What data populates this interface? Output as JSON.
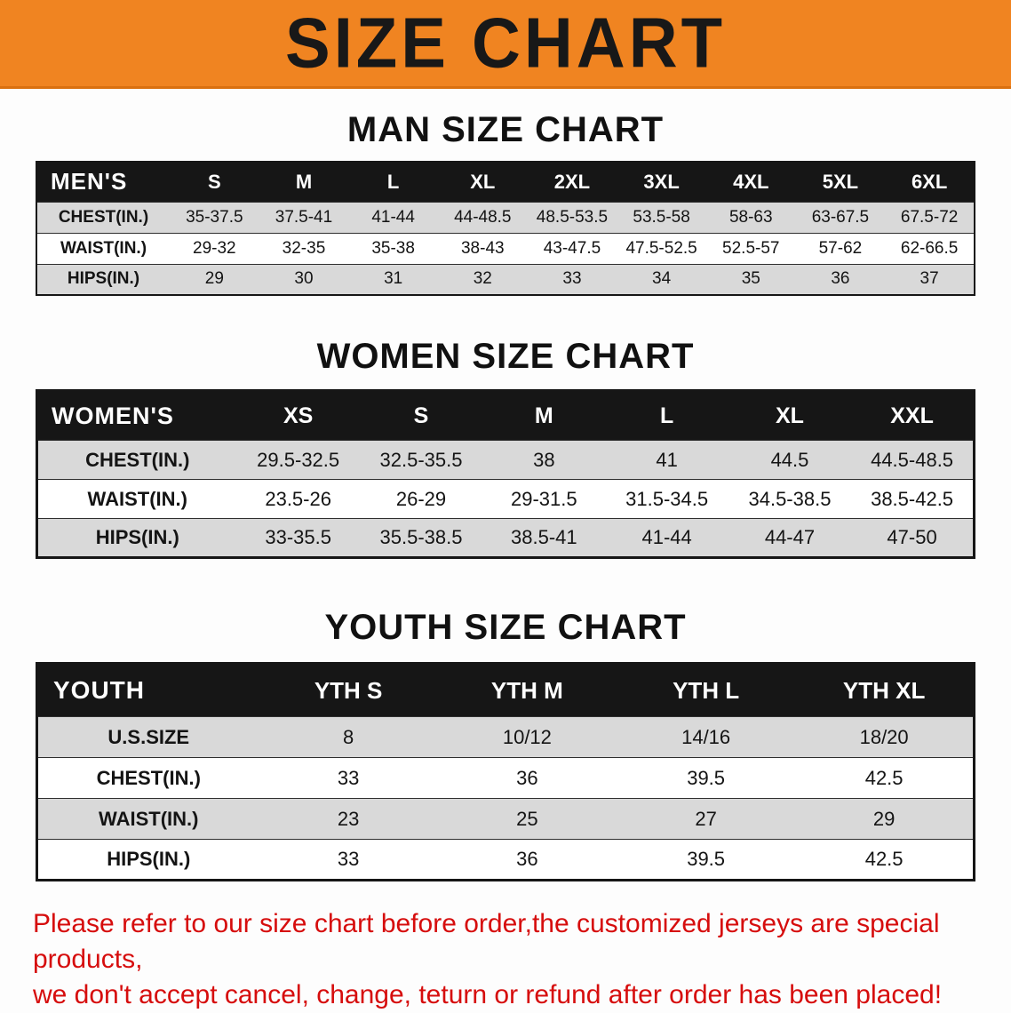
{
  "banner": {
    "title": "SIZE CHART",
    "background_color": "#f08421",
    "text_color": "#181818"
  },
  "men": {
    "heading": "MAN SIZE CHART",
    "header": [
      "MEN'S",
      "S",
      "M",
      "L",
      "XL",
      "2XL",
      "3XL",
      "4XL",
      "5XL",
      "6XL"
    ],
    "rows": [
      {
        "label": "CHEST(IN.)",
        "values": [
          "35-37.5",
          "37.5-41",
          "41-44",
          "44-48.5",
          "48.5-53.5",
          "53.5-58",
          "58-63",
          "63-67.5",
          "67.5-72"
        ]
      },
      {
        "label": "WAIST(IN.)",
        "values": [
          "29-32",
          "32-35",
          "35-38",
          "38-43",
          "43-47.5",
          "47.5-52.5",
          "52.5-57",
          "57-62",
          "62-66.5"
        ]
      },
      {
        "label": "HIPS(IN.)",
        "values": [
          "29",
          "30",
          "31",
          "32",
          "33",
          "34",
          "35",
          "36",
          "37"
        ]
      }
    ]
  },
  "women": {
    "heading": "WOMEN SIZE CHART",
    "header": [
      "WOMEN'S",
      "XS",
      "S",
      "M",
      "L",
      "XL",
      "XXL"
    ],
    "rows": [
      {
        "label": "CHEST(IN.)",
        "values": [
          "29.5-32.5",
          "32.5-35.5",
          "38",
          "41",
          "44.5",
          "44.5-48.5"
        ]
      },
      {
        "label": "WAIST(IN.)",
        "values": [
          "23.5-26",
          "26-29",
          "29-31.5",
          "31.5-34.5",
          "34.5-38.5",
          "38.5-42.5"
        ]
      },
      {
        "label": "HIPS(IN.)",
        "values": [
          "33-35.5",
          "35.5-38.5",
          "38.5-41",
          "41-44",
          "44-47",
          "47-50"
        ]
      }
    ]
  },
  "youth": {
    "heading": "YOUTH SIZE CHART",
    "header": [
      "YOUTH",
      "YTH S",
      "YTH M",
      "YTH L",
      "YTH XL"
    ],
    "rows": [
      {
        "label": "U.S.SIZE",
        "values": [
          "8",
          "10/12",
          "14/16",
          "18/20"
        ]
      },
      {
        "label": "CHEST(IN.)",
        "values": [
          "33",
          "36",
          "39.5",
          "42.5"
        ]
      },
      {
        "label": "WAIST(IN.)",
        "values": [
          "23",
          "25",
          "27",
          "29"
        ]
      },
      {
        "label": "HIPS(IN.)",
        "values": [
          "33",
          "36",
          "39.5",
          "42.5"
        ]
      }
    ]
  },
  "disclaimer": {
    "line1": "Please refer to our size chart before order,the customized jerseys are special products,",
    "line2": "we don't accept cancel, change, teturn or refund after order has been placed!",
    "text_color": "#d60d0d"
  }
}
